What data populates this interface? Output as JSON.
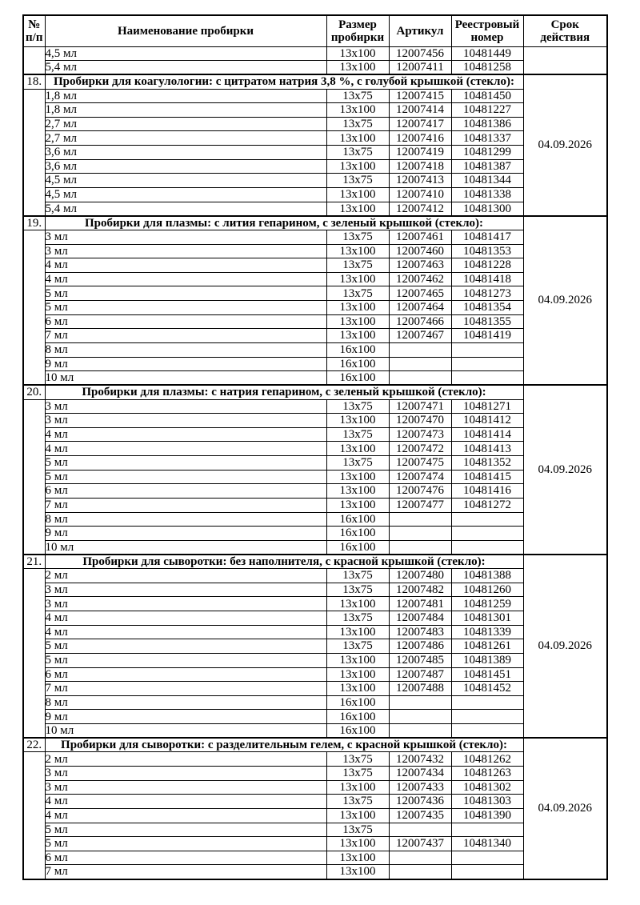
{
  "table": {
    "header": {
      "num": "№\nп/п",
      "name": "Наименование пробирки",
      "size": "Размер\nпробирки",
      "article": "Артикул",
      "registry": "Реестровый\nномер",
      "validity": "Срок\nдействия"
    },
    "sections": [
      {
        "num": "",
        "title": null,
        "validity": "",
        "rows": [
          [
            "4,5 мл",
            "13x100",
            "12007456",
            "10481449"
          ],
          [
            "5,4 мл",
            "13x100",
            "12007411",
            "10481258"
          ]
        ]
      },
      {
        "num": "18.",
        "title": "Пробирки для коагулологии: с цитратом натрия 3,8 %, с голубой крышкой (стекло):",
        "validity": "04.09.2026",
        "rows": [
          [
            "1,8 мл",
            "13x75",
            "12007415",
            "10481450"
          ],
          [
            "1,8 мл",
            "13x100",
            "12007414",
            "10481227"
          ],
          [
            "2,7 мл",
            "13x75",
            "12007417",
            "10481386"
          ],
          [
            "2,7 мл",
            "13x100",
            "12007416",
            "10481337"
          ],
          [
            "3,6 мл",
            "13x75",
            "12007419",
            "10481299"
          ],
          [
            "3,6 мл",
            "13x100",
            "12007418",
            "10481387"
          ],
          [
            "4,5 мл",
            "13x75",
            "12007413",
            "10481344"
          ],
          [
            "4,5 мл",
            "13x100",
            "12007410",
            "10481338"
          ],
          [
            "5,4 мл",
            "13x100",
            "12007412",
            "10481300"
          ]
        ]
      },
      {
        "num": "19.",
        "title": "Пробирки для плазмы: с лития гепарином, с зеленый крышкой (стекло):",
        "validity": "04.09.2026",
        "rows": [
          [
            "3 мл",
            "13x75",
            "12007461",
            "10481417"
          ],
          [
            "3 мл",
            "13x100",
            "12007460",
            "10481353"
          ],
          [
            "4 мл",
            "13x75",
            "12007463",
            "10481228"
          ],
          [
            "4 мл",
            "13x100",
            "12007462",
            "10481418"
          ],
          [
            "5 мл",
            "13x75",
            "12007465",
            "10481273"
          ],
          [
            "5 мл",
            "13x100",
            "12007464",
            "10481354"
          ],
          [
            "6 мл",
            "13x100",
            "12007466",
            "10481355"
          ],
          [
            "7 мл",
            "13x100",
            "12007467",
            "10481419"
          ],
          [
            "8 мл",
            "16x100",
            "",
            ""
          ],
          [
            "9 мл",
            "16x100",
            "",
            ""
          ],
          [
            "10 мл",
            "16x100",
            "",
            ""
          ]
        ]
      },
      {
        "num": "20.",
        "title": "Пробирки для плазмы: с натрия гепарином, с зеленый крышкой (стекло):",
        "validity": "04.09.2026",
        "rows": [
          [
            "3 мл",
            "13x75",
            "12007471",
            "10481271"
          ],
          [
            "3 мл",
            "13x100",
            "12007470",
            "10481412"
          ],
          [
            "4 мл",
            "13x75",
            "12007473",
            "10481414"
          ],
          [
            "4 мл",
            "13x100",
            "12007472",
            "10481413"
          ],
          [
            "5 мл",
            "13x75",
            "12007475",
            "10481352"
          ],
          [
            "5 мл",
            "13x100",
            "12007474",
            "10481415"
          ],
          [
            "6 мл",
            "13x100",
            "12007476",
            "10481416"
          ],
          [
            "7 мл",
            "13x100",
            "12007477",
            "10481272"
          ],
          [
            "8 мл",
            "16x100",
            "",
            ""
          ],
          [
            "9 мл",
            "16x100",
            "",
            ""
          ],
          [
            "10 мл",
            "16x100",
            "",
            ""
          ]
        ]
      },
      {
        "num": "21.",
        "title": "Пробирки для сыворотки: без наполнителя, с красной крышкой (стекло):",
        "validity": "04.09.2026",
        "rows": [
          [
            "2 мл",
            "13x75",
            "12007480",
            "10481388"
          ],
          [
            "3 мл",
            "13x75",
            "12007482",
            "10481260"
          ],
          [
            "3 мл",
            "13x100",
            "12007481",
            "10481259"
          ],
          [
            "4 мл",
            "13x75",
            "12007484",
            "10481301"
          ],
          [
            "4 мл",
            "13x100",
            "12007483",
            "10481339"
          ],
          [
            "5 мл",
            "13x75",
            "12007486",
            "10481261"
          ],
          [
            "5 мл",
            "13x100",
            "12007485",
            "10481389"
          ],
          [
            "6 мл",
            "13x100",
            "12007487",
            "10481451"
          ],
          [
            "7 мл",
            "13x100",
            "12007488",
            "10481452"
          ],
          [
            "8 мл",
            "16x100",
            "",
            ""
          ],
          [
            "9 мл",
            "16x100",
            "",
            ""
          ],
          [
            "10 мл",
            "16x100",
            "",
            ""
          ]
        ]
      },
      {
        "num": "22.",
        "title": "Пробирки для сыворотки: с разделительным гелем, с красной крышкой (стекло):",
        "validity": "04.09.2026",
        "rows": [
          [
            "2 мл",
            "13x75",
            "12007432",
            "10481262"
          ],
          [
            "3 мл",
            "13x75",
            "12007434",
            "10481263"
          ],
          [
            "3 мл",
            "13x100",
            "12007433",
            "10481302"
          ],
          [
            "4 мл",
            "13x75",
            "12007436",
            "10481303"
          ],
          [
            "4 мл",
            "13x100",
            "12007435",
            "10481390"
          ],
          [
            "5 мл",
            "13x75",
            "",
            ""
          ],
          [
            "5 мл",
            "13x100",
            "12007437",
            "10481340"
          ],
          [
            "6 мл",
            "13x100",
            "",
            ""
          ],
          [
            "7 мл",
            "13x100",
            "",
            ""
          ]
        ]
      }
    ]
  }
}
